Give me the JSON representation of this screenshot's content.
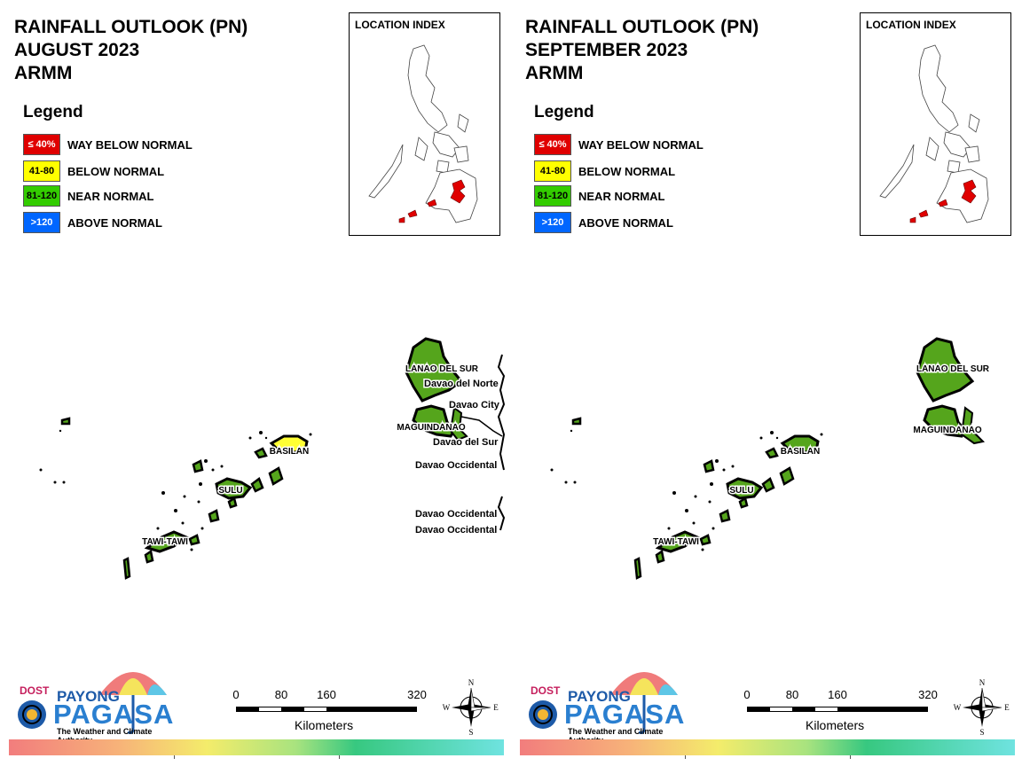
{
  "panels": [
    {
      "title": [
        "RAINFALL OUTLOOK (PN)",
        "AUGUST 2023",
        "ARMM"
      ],
      "legend_title": "Legend",
      "legend": [
        {
          "code": "≤ 40%",
          "label": "WAY BELOW NORMAL",
          "color": "#e00000",
          "text_color": "#ffffff"
        },
        {
          "code": "41-80",
          "label": "BELOW NORMAL",
          "color": "#ffff00",
          "text_color": "#000000"
        },
        {
          "code": "81-120",
          "label": "NEAR NORMAL",
          "color": "#33cc00",
          "text_color": "#000000"
        },
        {
          "code": ">120",
          "label": "ABOVE NORMAL",
          "color": "#0066ff",
          "text_color": "#ffffff"
        }
      ],
      "location_index_title": "LOCATION INDEX",
      "province_labels": {
        "lanao_del_sur": "LANAO DEL SUR",
        "maguindanao": "MAGUINDANAO",
        "basilan": "BASILAN",
        "sulu": "SULU",
        "tawi_tawi": "TAWI-TAWI"
      },
      "neighbor_labels": [
        "Davao del Norte",
        "Davao City",
        "Davao del Sur",
        "Davao Occidental",
        "Davao Occidental",
        "Davao Occidental"
      ],
      "province_outlook": {
        "lanao_del_sur": "NEAR NORMAL",
        "maguindanao": "NEAR NORMAL",
        "basilan": "BELOW NORMAL",
        "sulu": "NEAR NORMAL",
        "tawi_tawi": "NEAR NORMAL"
      }
    },
    {
      "title": [
        "RAINFALL OUTLOOK (PN)",
        "SEPTEMBER 2023",
        "ARMM"
      ],
      "legend_title": "Legend",
      "legend": [
        {
          "code": "≤ 40%",
          "label": "WAY BELOW NORMAL",
          "color": "#e00000",
          "text_color": "#ffffff"
        },
        {
          "code": "41-80",
          "label": "BELOW NORMAL",
          "color": "#ffff00",
          "text_color": "#000000"
        },
        {
          "code": "81-120",
          "label": "NEAR NORMAL",
          "color": "#33cc00",
          "text_color": "#000000"
        },
        {
          "code": ">120",
          "label": "ABOVE NORMAL",
          "color": "#0066ff",
          "text_color": "#ffffff"
        }
      ],
      "location_index_title": "LOCATION INDEX",
      "province_labels": {
        "lanao_del_sur": "LANAO DEL SUR",
        "maguindanao": "MAGUINDANAO",
        "basilan": "BASILAN",
        "sulu": "SULU",
        "tawi_tawi": "TAWI-TAWI"
      },
      "province_outlook": {
        "lanao_del_sur": "NEAR NORMAL",
        "maguindanao": "NEAR NORMAL",
        "basilan": "NEAR NORMAL",
        "sulu": "NEAR NORMAL",
        "tawi_tawi": "NEAR NORMAL"
      }
    }
  ],
  "logo": {
    "dost": "DOST",
    "payong": "PAYONG",
    "pagasa": "PAGASA",
    "tagline": "The Weather and Climate Authority"
  },
  "scale": {
    "ticks": [
      "0",
      "80",
      "160",
      "320"
    ],
    "unit": "Kilometers"
  },
  "compass": {
    "n": "N",
    "s": "S",
    "e": "E",
    "w": "W"
  },
  "colors": {
    "land": "#55a51c",
    "below": "#ffff33",
    "index_highlight": "#e00000"
  }
}
